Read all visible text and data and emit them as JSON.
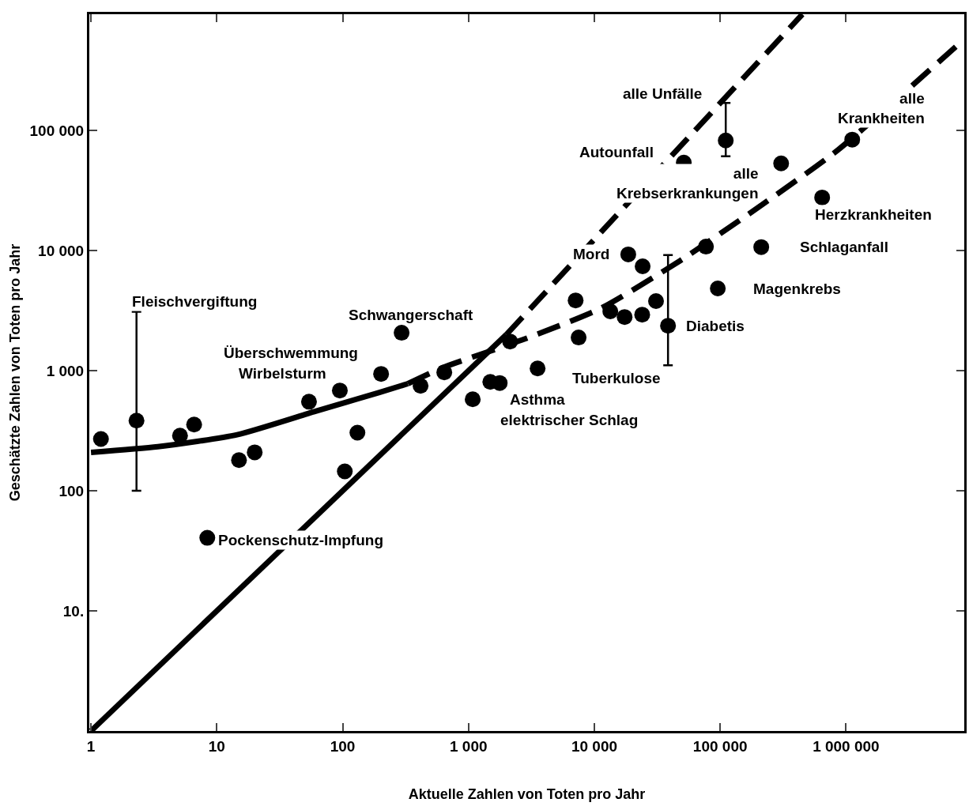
{
  "chart_data": {
    "type": "scatter",
    "xlabel": "Aktuelle Zahlen von Toten pro Jahr",
    "ylabel": "Geschätzte Zahlen von Toten pro Jahr",
    "log": "xy",
    "grid": false,
    "marker": "circle",
    "xlim": [
      0.97,
      8700000
    ],
    "xticks": [
      1,
      10,
      100,
      {
        "value": 1000,
        "label": "1 000"
      },
      {
        "value": 10000,
        "label": "10 000"
      },
      {
        "value": 100000,
        "label": "100 000"
      },
      {
        "value": 1000000,
        "label": "1 000 000"
      }
    ],
    "ylim": [
      1,
      930000
    ],
    "yticks": [
      {
        "value": 10,
        "label": "10."
      },
      {
        "value": 100,
        "label": "100"
      },
      {
        "value": 1000,
        "label": "1 000"
      },
      {
        "value": 10000,
        "label": "10 000"
      },
      {
        "value": 100000,
        "label": "100 000"
      }
    ],
    "series": [
      {
        "color": "#000000",
        "x": [
          1.2,
          2.3,
          5.1,
          6.6,
          8.4,
          15,
          20,
          54,
          95,
          104,
          131,
          202,
          416,
          294,
          642,
          1080,
          1490,
          1770,
          2140,
          3540,
          7100,
          7500,
          13400,
          18600,
          17400,
          24200,
          24000,
          30900,
          38500,
          51400,
          110700,
          77100,
          95700,
          212000,
          305000,
          646000,
          1120000
        ],
        "values": [
          270,
          384,
          288,
          356,
          40.6,
          180,
          209,
          552,
          684,
          145,
          305,
          940,
          748,
          2070,
          969,
          578,
          807,
          790,
          1750,
          1045,
          3850,
          1890,
          3120,
          9300,
          2800,
          7400,
          2930,
          3800,
          2370,
          54000,
          82700,
          10800,
          4840,
          10700,
          53300,
          27700,
          84000
        ],
        "errors": [
          null,
          [
            100,
            3100
          ],
          null,
          null,
          null,
          null,
          null,
          null,
          null,
          null,
          null,
          null,
          null,
          null,
          null,
          null,
          null,
          null,
          null,
          null,
          null,
          null,
          null,
          null,
          null,
          null,
          null,
          null,
          [
            1110,
            9200
          ],
          null,
          [
            61000,
            170000
          ],
          null,
          null,
          null,
          null,
          null,
          null
        ]
      },
      {
        "type": "line",
        "color": "#000000",
        "line_style": "solid",
        "marker": "none",
        "x": [
          1,
          2000
        ],
        "values": [
          1,
          2000
        ]
      },
      {
        "type": "line",
        "color": "#000000",
        "line_style": "dashed",
        "marker": "none",
        "x": [
          2000,
          450000
        ],
        "values": [
          2000,
          930000
        ]
      },
      {
        "type": "line",
        "color": "#000000",
        "line_style": "solid",
        "marker": "none",
        "x": [
          1,
          3.4,
          14.5,
          61,
          196,
          330
        ],
        "values": [
          209,
          233,
          293,
          460,
          660,
          780
        ]
      },
      {
        "type": "line",
        "color": "#000000",
        "line_style": "dashed",
        "marker": "none",
        "x": [
          330,
          624,
          2650,
          11200,
          48000,
          203000,
          863000,
          8700000
        ],
        "values": [
          780,
          1060,
          1800,
          3300,
          8240,
          23100,
          68900,
          577000
        ]
      }
    ],
    "annotations": [
      {
        "text": "alle Unfälle",
        "x": 110700,
        "y": 170000
      },
      {
        "text": "alle\nKrankheiten",
        "x": 1120000,
        "y": 84000
      },
      {
        "text": "Autounfall",
        "x": 51400,
        "y": 54000
      },
      {
        "text": "alle\nKrebserkrankungen",
        "x": 305000,
        "y": 53300
      },
      {
        "text": "Herzkrankheiten",
        "x": 646000,
        "y": 27700
      },
      {
        "text": "Schlaganfall",
        "x": 212000,
        "y": 10700
      },
      {
        "text": "Mord",
        "x": 18600,
        "y": 9300
      },
      {
        "text": "Magenkrebs",
        "x": 95700,
        "y": 4840
      },
      {
        "text": "Diabetis",
        "x": 38500,
        "y": 2370
      },
      {
        "text": "Tuberkulose",
        "x": 3540,
        "y": 1045
      },
      {
        "text": "Asthma",
        "x": 1490,
        "y": 807
      },
      {
        "text": "elektrischer Schlag",
        "x": 1770,
        "y": 790
      },
      {
        "text": "Schwangerschaft",
        "x": 294,
        "y": 2070
      },
      {
        "text": "Überschwemmung",
        "x": 202,
        "y": 940
      },
      {
        "text": "Wirbelsturm",
        "x": 95,
        "y": 684
      },
      {
        "text": "Fleischvergiftung",
        "x": 2.3,
        "y": 3100
      },
      {
        "text": "Pockenschutz-Impfung",
        "x": 8.4,
        "y": 40.6
      }
    ]
  }
}
